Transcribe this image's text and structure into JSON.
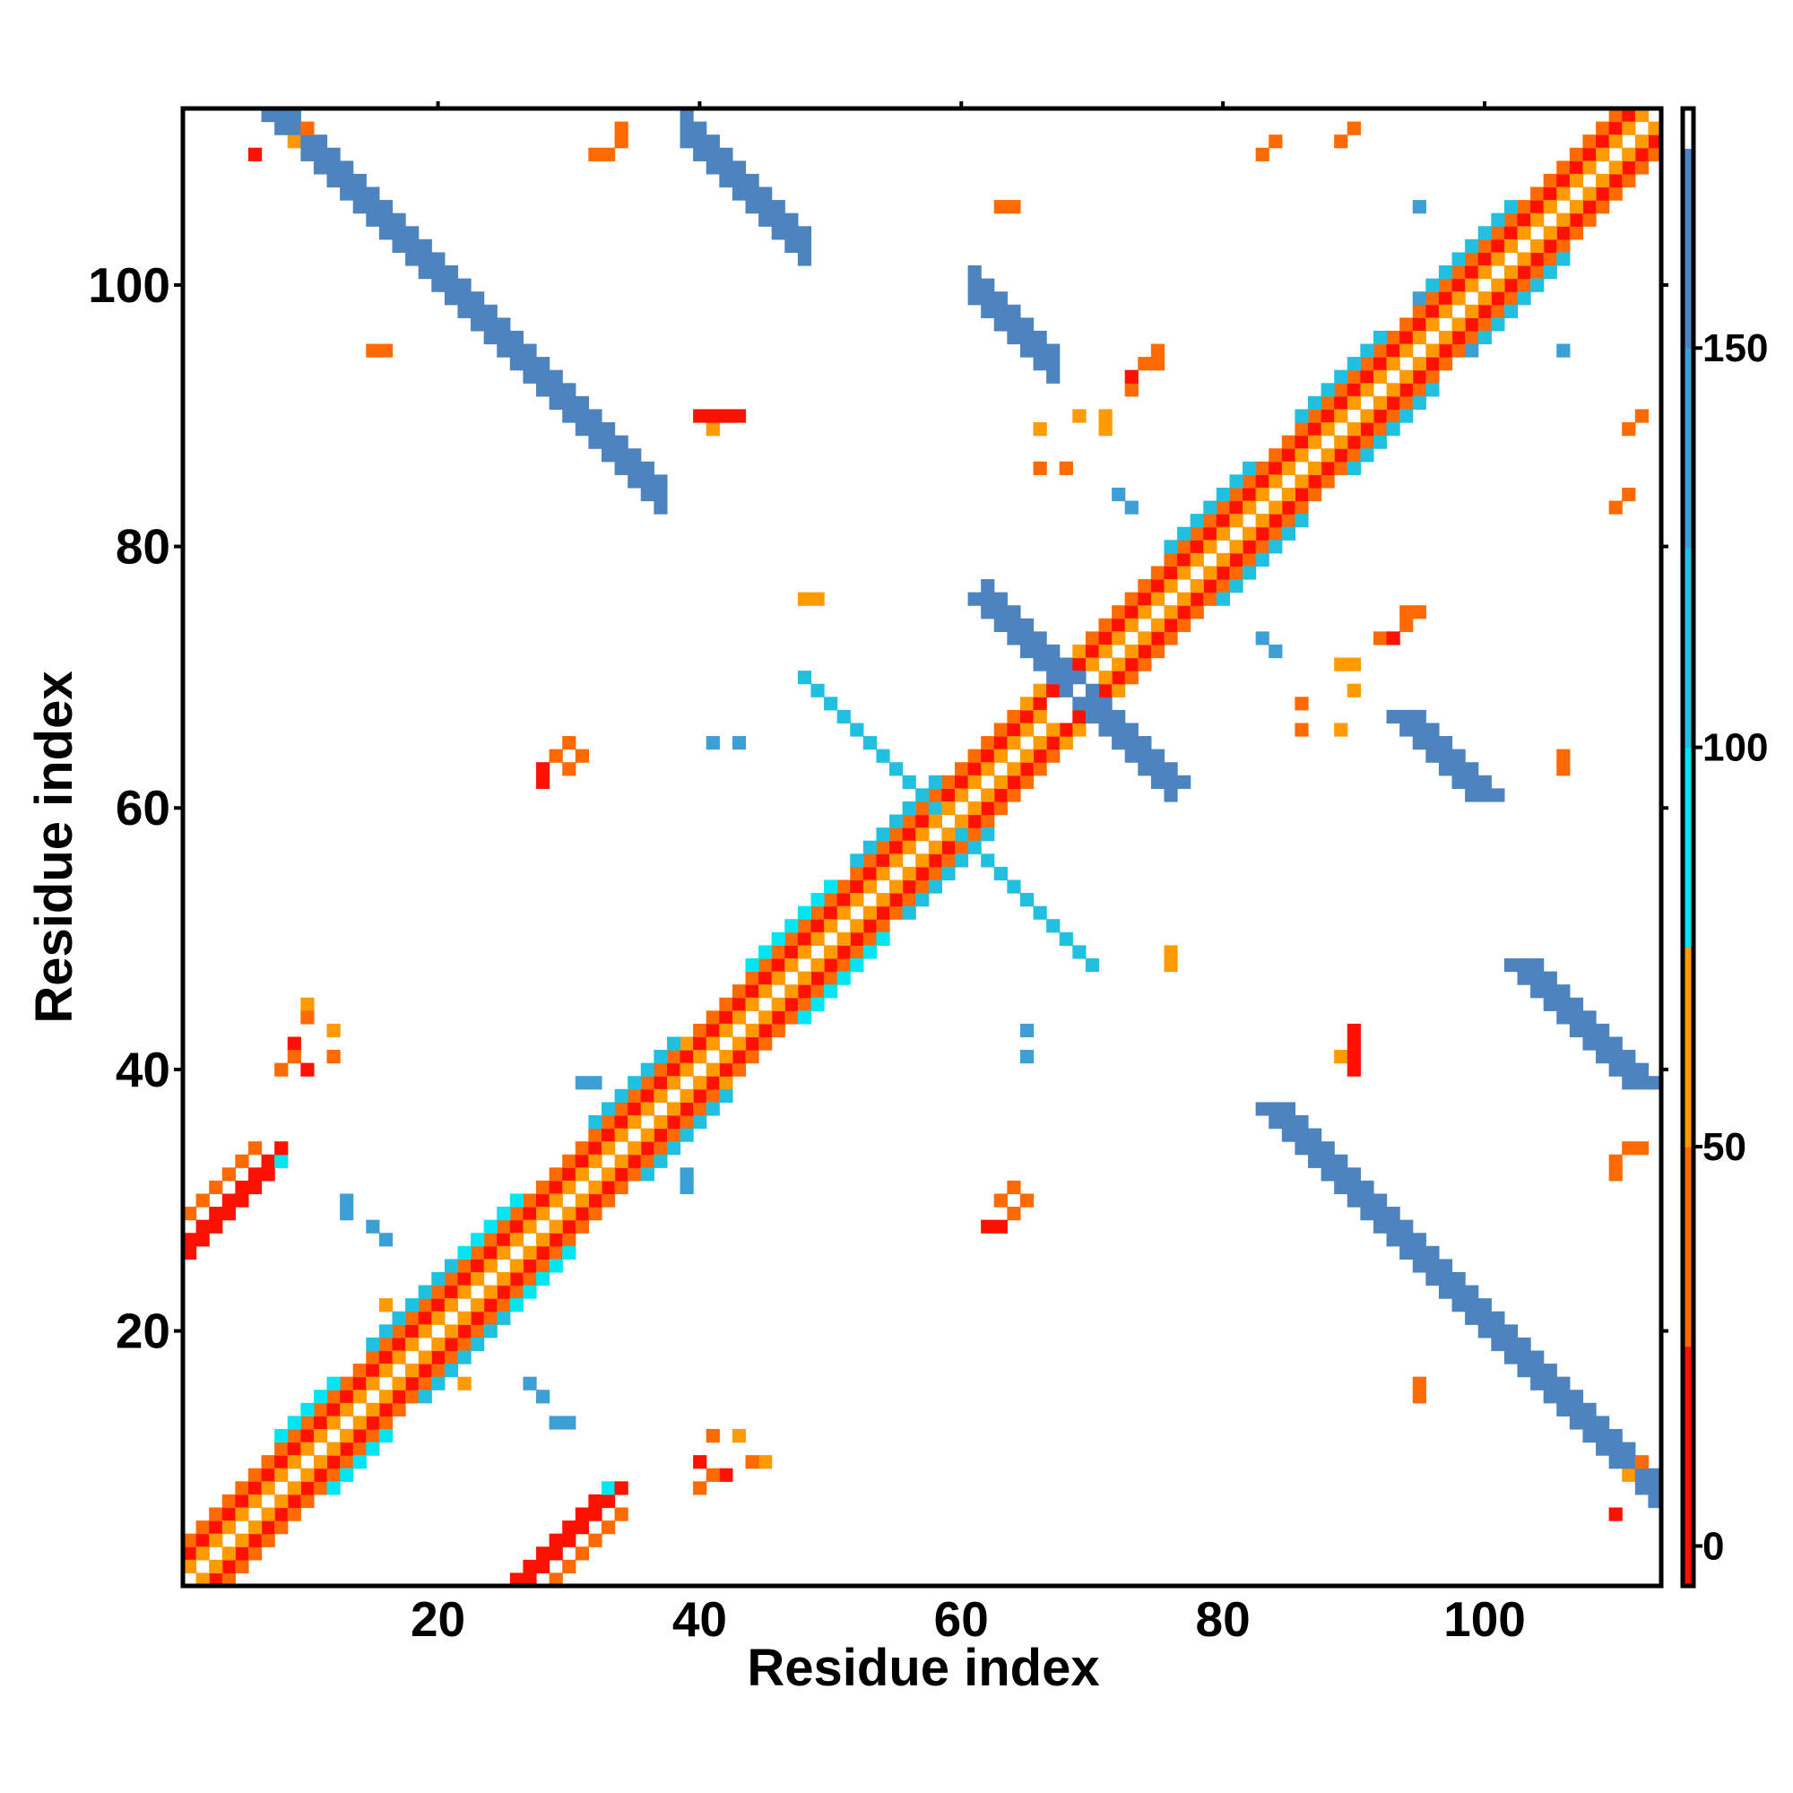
{
  "chart_data": {
    "type": "heatmap",
    "title": "",
    "xlabel": "Residue index",
    "ylabel": "Residue index",
    "n_residues": 113,
    "xlim": [
      0.5,
      113.5
    ],
    "ylim": [
      0.5,
      113.5
    ],
    "x_ticks": [
      20,
      40,
      60,
      80,
      100
    ],
    "y_ticks": [
      20,
      40,
      60,
      80,
      100
    ],
    "x_tick_labels": [
      "20",
      "40",
      "60",
      "80",
      "100"
    ],
    "y_tick_labels": [
      "20",
      "40",
      "60",
      "80",
      "100"
    ],
    "grid": false,
    "colorbar": {
      "position": "right",
      "range": [
        -5,
        180
      ],
      "ticks": [
        0,
        50,
        100,
        150
      ],
      "tick_labels": [
        "0",
        "50",
        "100",
        "150"
      ],
      "bands": [
        {
          "from": -5,
          "to": 25,
          "color": "#ff1100"
        },
        {
          "from": 25,
          "to": 50,
          "color": "#ff6a00"
        },
        {
          "from": 50,
          "to": 75,
          "color": "#ff9a00"
        },
        {
          "from": 75,
          "to": 100,
          "color": "#00e5f2"
        },
        {
          "from": 100,
          "to": 125,
          "color": "#22c0e0"
        },
        {
          "from": 125,
          "to": 150,
          "color": "#3c9fd6"
        },
        {
          "from": 150,
          "to": 175,
          "color": "#4d84c0"
        },
        {
          "from": 175,
          "to": 180,
          "color": "#ffffff"
        }
      ]
    },
    "diagonal": {
      "i_start": 1,
      "i_end": 113,
      "offset1_value": 30,
      "offset2_value": 10,
      "offset3_value": 55
    },
    "segments": [
      {
        "name": "helix-1-4",
        "i_start": 1,
        "i_end": 40,
        "offset": 1,
        "value": 60
      },
      {
        "name": "helix-1-4-b",
        "i_start": 1,
        "i_end": 38,
        "offset": 3,
        "value": 40
      },
      {
        "name": "helix-2-4",
        "i_start": 40,
        "i_end": 66,
        "offset": 1,
        "value": 55
      },
      {
        "name": "helix-2-4-b",
        "i_start": 40,
        "i_end": 64,
        "offset": 3,
        "value": 35
      },
      {
        "name": "helix-3-4",
        "i_start": 70,
        "i_end": 113,
        "offset": 1,
        "value": 55
      },
      {
        "name": "helix-3-4-b",
        "i_start": 70,
        "i_end": 110,
        "offset": 3,
        "value": 35
      },
      {
        "name": "strand-10-14-a",
        "i_start": 8,
        "i_end": 12,
        "offset": 4,
        "value": 95
      },
      {
        "name": "strand-16-22",
        "i_start": 15,
        "i_end": 22,
        "offset": 4,
        "value": 100
      },
      {
        "name": "strand-22-26",
        "i_start": 22,
        "i_end": 26,
        "offset": 4,
        "value": 95
      },
      {
        "name": "strand-32-38",
        "i_start": 32,
        "i_end": 38,
        "offset": 4,
        "value": 100
      },
      {
        "name": "strand-44-50",
        "i_start": 44,
        "i_end": 50,
        "offset": 4,
        "value": 95
      },
      {
        "name": "strand-52-58",
        "i_start": 52,
        "i_end": 58,
        "offset": 4,
        "value": 105
      },
      {
        "name": "strand-76-82",
        "i_start": 76,
        "i_end": 82,
        "offset": 4,
        "value": 100
      },
      {
        "name": "strand-86-92",
        "i_start": 86,
        "i_end": 92,
        "offset": 4,
        "value": 105
      },
      {
        "name": "strand-96-102",
        "i_start": 96,
        "i_end": 102,
        "offset": 4,
        "value": 100
      }
    ],
    "antiparallel": [
      {
        "name": "sheet-A",
        "sum": 121,
        "i_start": 7,
        "i_end": 37,
        "width": 2,
        "value": 160
      },
      {
        "name": "sheet-B",
        "sum": 138,
        "i_start": 62,
        "i_end": 76,
        "width": 2,
        "value": 160
      },
      {
        "name": "sheet-C",
        "sum": 151,
        "i_start": 39,
        "i_end": 48,
        "width": 2,
        "value": 160
      },
      {
        "name": "sheet-D",
        "sum": 161,
        "i_start": 61,
        "i_end": 67,
        "width": 2,
        "value": 160
      },
      {
        "name": "sheet-E",
        "sum": 118,
        "i_start": 48,
        "i_end": 60,
        "width": 1,
        "value": 105
      }
    ],
    "parallel": [
      {
        "name": "para-1",
        "offset": 25,
        "i_start": 1,
        "i_end": 8,
        "width": 2,
        "value": 5
      },
      {
        "name": "para-2",
        "offset": 28,
        "i_start": 1,
        "i_end": 5,
        "width": 1,
        "value": 30
      }
    ],
    "patches": [
      {
        "i": 10,
        "j": 112,
        "value": 30
      },
      {
        "i": 9,
        "j": 111,
        "value": 55
      },
      {
        "i": 34,
        "j": 112,
        "value": 40
      },
      {
        "i": 33,
        "j": 110,
        "value": 30
      },
      {
        "i": 90,
        "j": 112,
        "value": 40
      },
      {
        "i": 89,
        "j": 111,
        "value": 40
      },
      {
        "i": 64,
        "j": 106,
        "value": 40
      },
      {
        "i": 95,
        "j": 106,
        "value": 140
      },
      {
        "i": 15,
        "j": 95,
        "value": 40
      },
      {
        "i": 99,
        "j": 95,
        "value": 140
      },
      {
        "i": 40,
        "j": 90,
        "value": 10
      },
      {
        "i": 42,
        "j": 90,
        "value": 10
      },
      {
        "i": 41,
        "j": 89,
        "value": 55
      },
      {
        "i": 66,
        "j": 89,
        "value": 60
      },
      {
        "i": 71,
        "j": 89,
        "value": 60
      },
      {
        "i": 73,
        "j": 92,
        "value": 30
      },
      {
        "i": 75,
        "j": 94,
        "value": 30
      },
      {
        "i": 66,
        "j": 86,
        "value": 30
      },
      {
        "i": 72,
        "j": 84,
        "value": 140
      },
      {
        "i": 111,
        "j": 84,
        "value": 30
      },
      {
        "i": 110,
        "j": 83,
        "value": 40
      },
      {
        "i": 48,
        "j": 76,
        "value": 60
      },
      {
        "i": 49,
        "j": 76,
        "value": 60
      },
      {
        "i": 83,
        "j": 73,
        "value": 140
      },
      {
        "i": 95,
        "j": 75,
        "value": 30
      },
      {
        "i": 94,
        "j": 74,
        "value": 30
      },
      {
        "i": 93,
        "j": 73,
        "value": 10
      },
      {
        "i": 90,
        "j": 71,
        "value": 55
      },
      {
        "i": 90,
        "j": 69,
        "value": 55
      },
      {
        "i": 86,
        "j": 68,
        "value": 40
      },
      {
        "i": 30,
        "j": 65,
        "value": 30
      },
      {
        "i": 29,
        "j": 64,
        "value": 30
      },
      {
        "i": 28,
        "j": 63,
        "value": 10
      },
      {
        "i": 41,
        "j": 65,
        "value": 140
      },
      {
        "i": 106,
        "j": 63,
        "value": 40
      },
      {
        "i": 65,
        "j": 43,
        "value": 140
      },
      {
        "i": 90,
        "j": 43,
        "value": 10
      },
      {
        "i": 90,
        "j": 41,
        "value": 10
      },
      {
        "i": 10,
        "j": 45,
        "value": 55
      },
      {
        "i": 10,
        "j": 44,
        "value": 30
      },
      {
        "i": 9,
        "j": 42,
        "value": 10
      },
      {
        "i": 9,
        "j": 41,
        "value": 10
      },
      {
        "i": 8,
        "j": 40,
        "value": 40
      },
      {
        "i": 31,
        "j": 39,
        "value": 140
      },
      {
        "i": 39,
        "j": 32,
        "value": 140
      },
      {
        "i": 13,
        "j": 30,
        "value": 140
      },
      {
        "i": 15,
        "j": 28,
        "value": 140
      },
      {
        "i": 64,
        "j": 31,
        "value": 30
      },
      {
        "i": 63,
        "j": 30,
        "value": 30
      },
      {
        "i": 62,
        "j": 28,
        "value": 10
      },
      {
        "i": 111,
        "j": 34,
        "value": 30
      },
      {
        "i": 110,
        "j": 32,
        "value": 30
      },
      {
        "i": 27,
        "j": 16,
        "value": 140
      },
      {
        "i": 29,
        "j": 13,
        "value": 140
      },
      {
        "i": 41,
        "j": 12,
        "value": 40
      },
      {
        "i": 43,
        "j": 12,
        "value": 55
      },
      {
        "i": 40,
        "j": 10,
        "value": 10
      },
      {
        "i": 41,
        "j": 9,
        "value": 30
      },
      {
        "i": 95,
        "j": 16,
        "value": 40
      },
      {
        "i": 110,
        "j": 6,
        "value": 10
      },
      {
        "i": 33,
        "j": 8,
        "value": 95
      },
      {
        "i": 34,
        "j": 6,
        "value": 40
      },
      {
        "i": 22,
        "j": 16,
        "value": 55
      }
    ]
  }
}
